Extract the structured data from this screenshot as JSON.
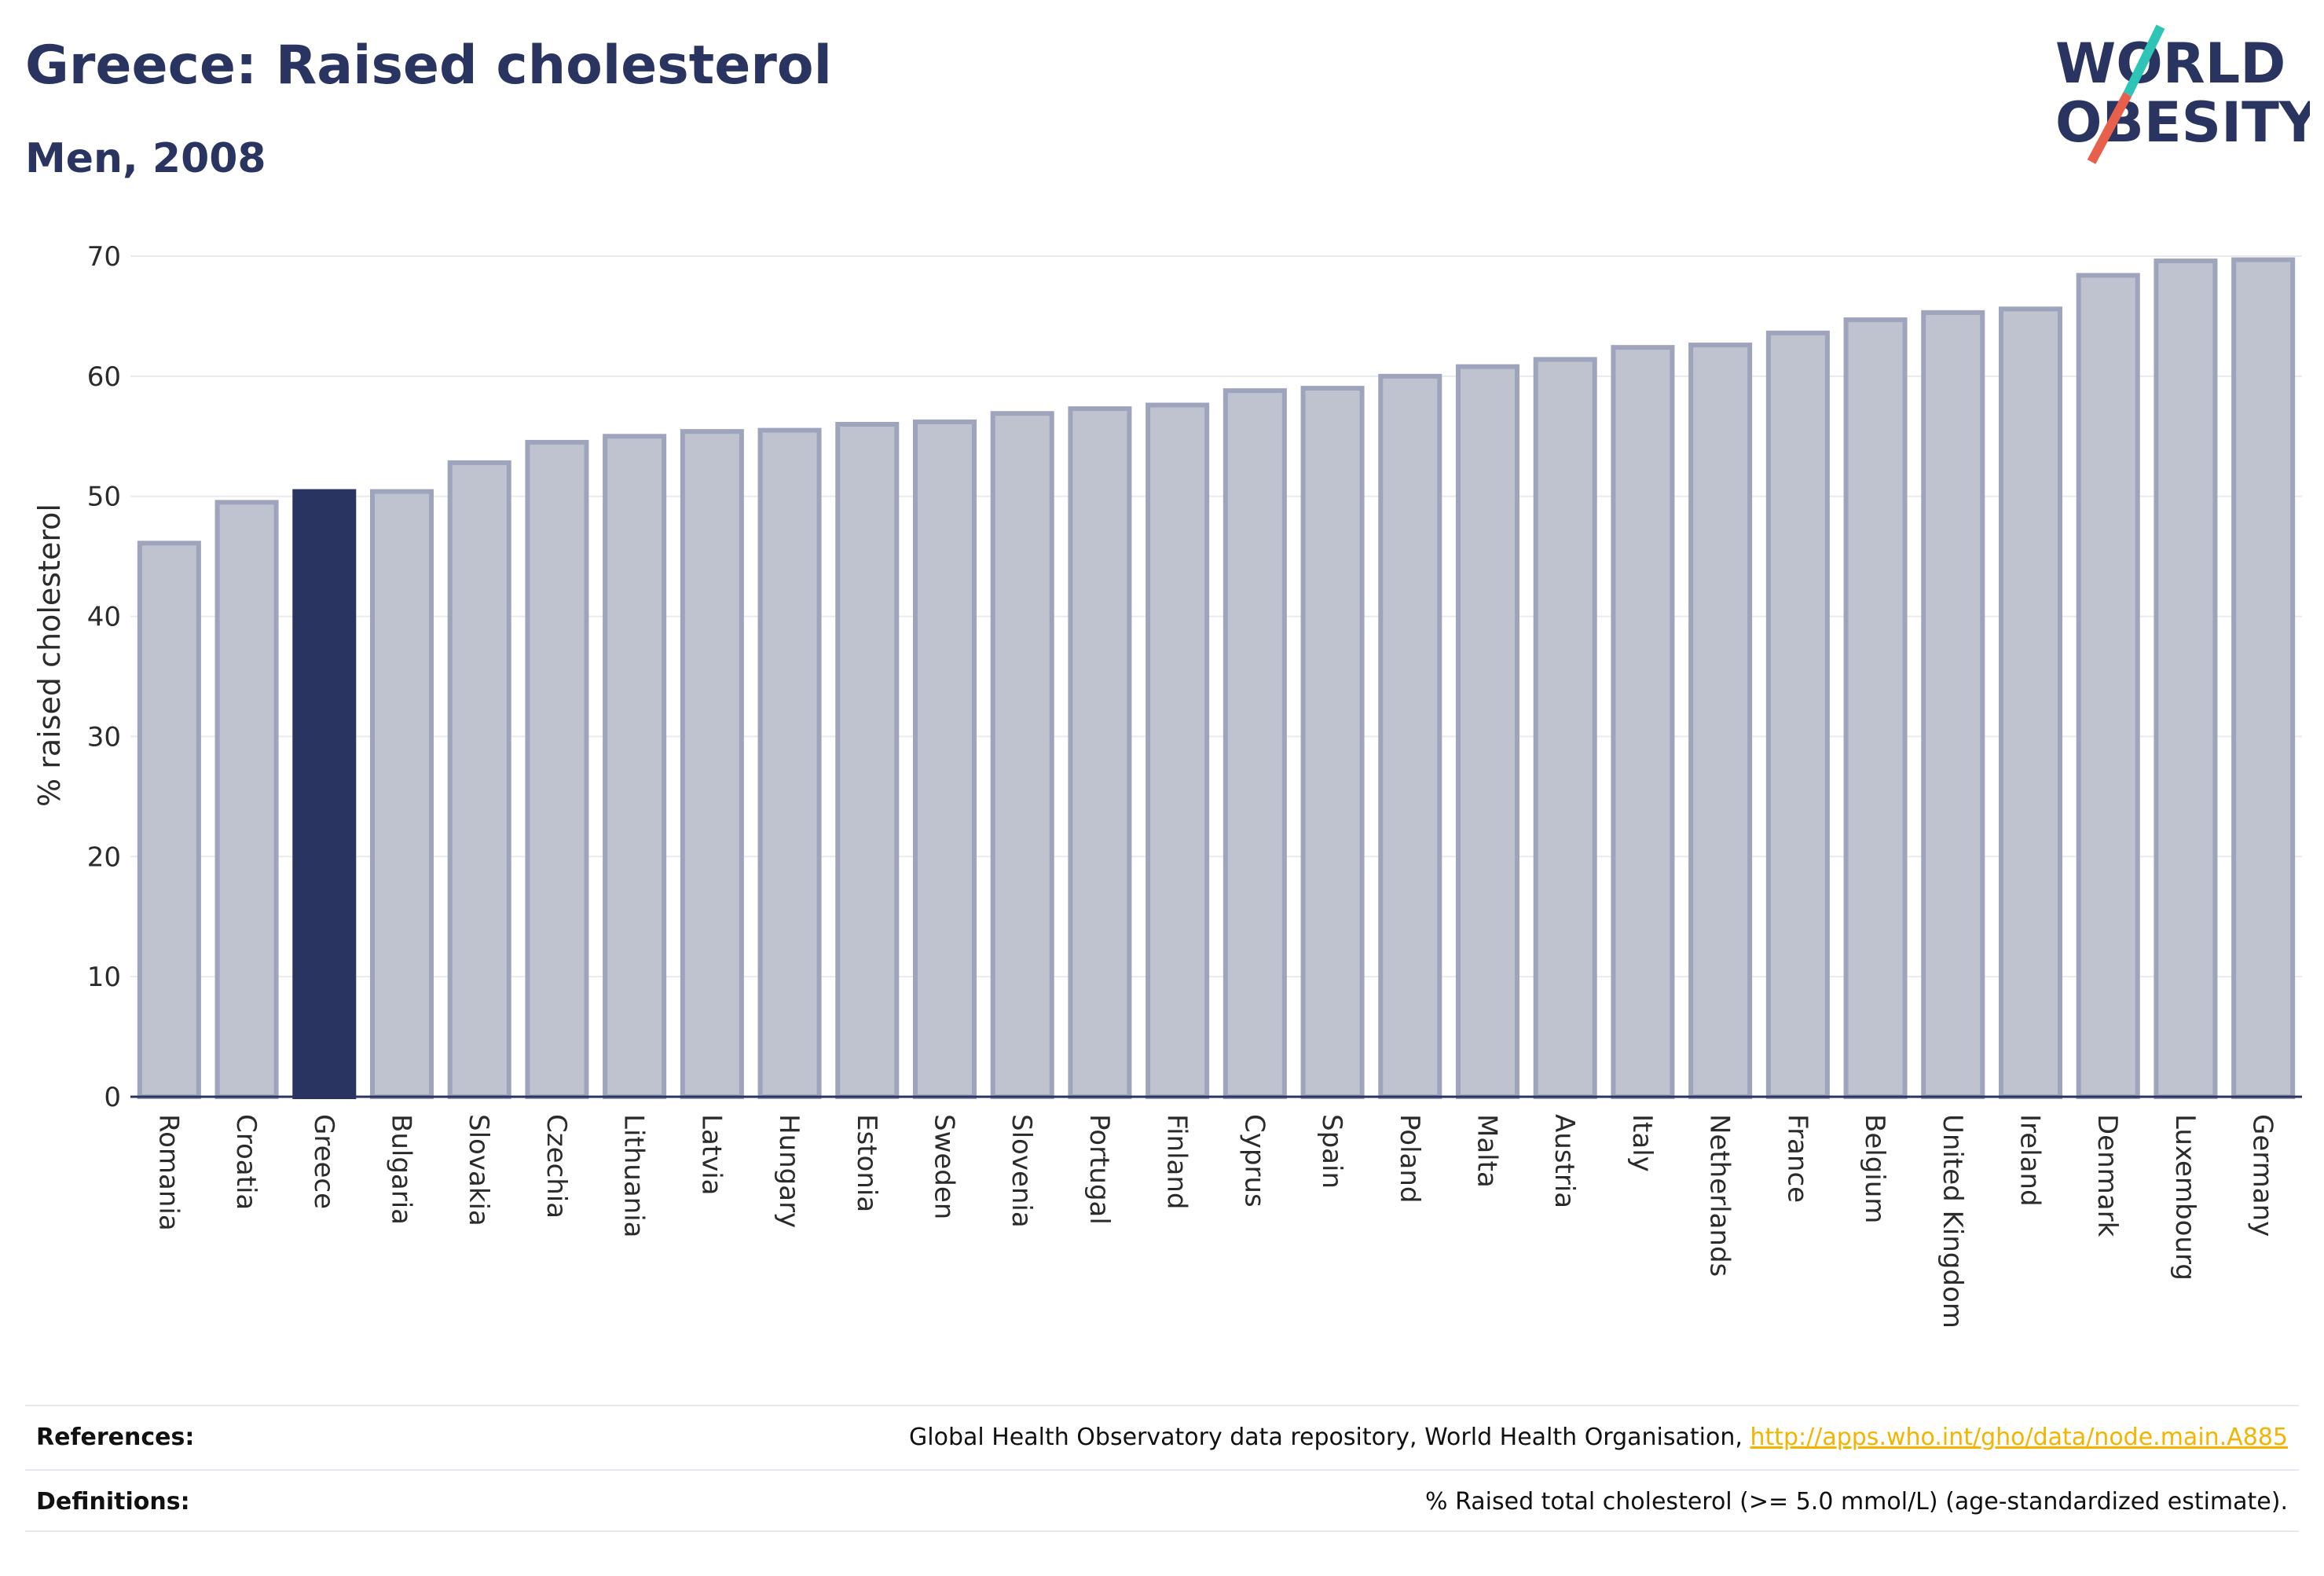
{
  "header": {
    "title": "Greece: Raised cholesterol",
    "subtitle": "Men, 2008"
  },
  "logo": {
    "line1": "WORLD",
    "line2": "OBESITY",
    "slash_color_top": "#2ec4b6",
    "slash_color_bottom": "#e8604c"
  },
  "colors": {
    "highlight_bar": "#2a3460",
    "bar_fill": "#bfc3d0",
    "bar_stroke": "#9ea4bb",
    "text_dark": "#2a3460",
    "link": "#f2b400"
  },
  "chart_data": {
    "type": "bar",
    "highlight": "Greece",
    "categories": [
      "Romania",
      "Croatia",
      "Greece",
      "Bulgaria",
      "Slovakia",
      "Czechia",
      "Lithuania",
      "Latvia",
      "Hungary",
      "Estonia",
      "Sweden",
      "Slovenia",
      "Portugal",
      "Finland",
      "Cyprus",
      "Spain",
      "Poland",
      "Malta",
      "Austria",
      "Italy",
      "Netherlands",
      "France",
      "Belgium",
      "United Kingdom",
      "Ireland",
      "Denmark",
      "Luxembourg",
      "Germany"
    ],
    "values": [
      46.1,
      49.5,
      50.4,
      50.4,
      52.8,
      54.5,
      55.0,
      55.4,
      55.5,
      56.0,
      56.2,
      56.9,
      57.3,
      57.6,
      58.8,
      59.0,
      60.0,
      60.8,
      61.4,
      62.4,
      62.6,
      63.6,
      64.7,
      65.3,
      65.6,
      68.4,
      69.6,
      69.7
    ],
    "title": "Greece: Raised cholesterol",
    "subtitle": "Men, 2008",
    "xlabel": "",
    "ylabel": "% raised cholesterol",
    "ylim": [
      0,
      70
    ],
    "yticks": [
      0,
      10,
      20,
      30,
      40,
      50,
      60,
      70
    ],
    "grid": true,
    "legend": "none"
  },
  "footer": {
    "references_label": "References:",
    "references_text": "Global Health Observatory data repository, World Health Organisation, ",
    "references_link": "http://apps.who.int/gho/data/node.main.A885",
    "definitions_label": "Definitions:",
    "definitions_text": "% Raised total cholesterol (>= 5.0 mmol/L) (age-standardized estimate)."
  }
}
